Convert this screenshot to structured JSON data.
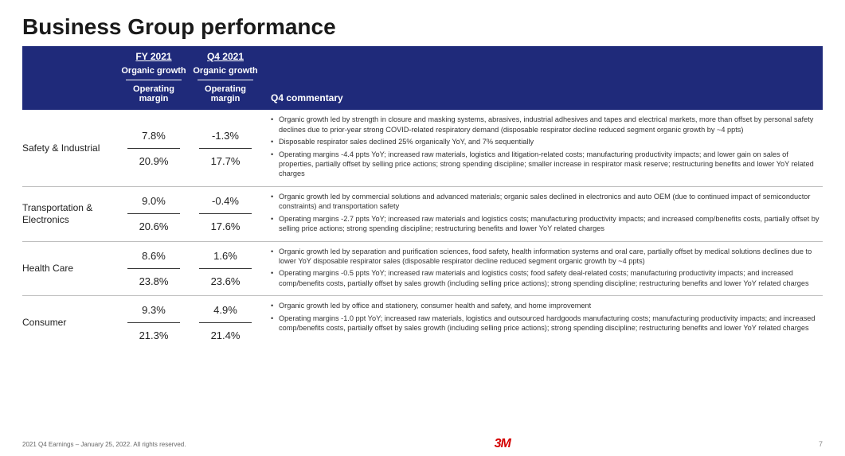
{
  "title": "Business Group performance",
  "header": {
    "period_fy": "FY 2021",
    "period_q4": "Q4 2021",
    "sub_growth": "Organic growth",
    "sub_margin": "Operating margin",
    "commentary_label": "Q4 commentary"
  },
  "segments": [
    {
      "name": "Safety & Industrial",
      "fy_growth": "7.8%",
      "fy_margin": "20.9%",
      "q4_growth": "-1.3%",
      "q4_margin": "17.7%",
      "bullets": [
        "Organic growth led by strength in closure and masking systems, abrasives, industrial adhesives and tapes and electrical markets, more than offset by personal safety declines due to prior-year strong COVID-related respiratory demand (disposable respirator decline reduced segment organic growth by ~4 ppts)",
        "Disposable respirator sales declined 25% organically YoY, and 7% sequentially",
        "Operating margins -4.4 ppts YoY; increased raw materials, logistics and litigation-related costs; manufacturing productivity impacts; and lower gain on sales of properties, partially offset by selling price actions; strong spending discipline; smaller increase in respirator mask reserve; restructuring benefits and lower YoY related charges"
      ]
    },
    {
      "name": "Transportation & Electronics",
      "fy_growth": "9.0%",
      "fy_margin": "20.6%",
      "q4_growth": "-0.4%",
      "q4_margin": "17.6%",
      "bullets": [
        "Organic growth led by commercial solutions and advanced materials; organic sales declined in electronics and auto OEM (due to continued impact of semiconductor constraints) and transportation safety",
        "Operating margins -2.7 ppts YoY; increased raw materials and logistics costs; manufacturing productivity impacts; and increased comp/benefits costs, partially offset by selling price actions; strong spending discipline; restructuring benefits and lower YoY related charges"
      ]
    },
    {
      "name": "Health Care",
      "fy_growth": "8.6%",
      "fy_margin": "23.8%",
      "q4_growth": "1.6%",
      "q4_margin": "23.6%",
      "bullets": [
        "Organic growth led by separation and purification sciences, food safety, health information systems and oral care, partially offset by medical solutions declines due to lower YoY disposable respirator sales (disposable respirator decline reduced segment organic growth by ~4 ppts)",
        "Operating margins -0.5 ppts YoY; increased raw materials and logistics costs; food safety deal-related costs; manufacturing productivity impacts; and increased comp/benefits costs, partially offset by sales growth (including selling price actions); strong spending discipline; restructuring benefits and lower YoY related charges"
      ]
    },
    {
      "name": "Consumer",
      "fy_growth": "9.3%",
      "fy_margin": "21.3%",
      "q4_growth": "4.9%",
      "q4_margin": "21.4%",
      "bullets": [
        "Organic growth led by office and stationery, consumer health and safety, and home improvement",
        "Operating margins -1.0 ppt YoY; increased raw materials, logistics and outsourced hardgoods manufacturing costs; manufacturing productivity impacts; and increased comp/benefits costs, partially offset by sales growth (including selling price actions); strong spending discipline; restructuring benefits and lower YoY related charges"
      ]
    }
  ],
  "footer": {
    "left": "2021 Q4 Earnings – January 25, 2022. All rights reserved.",
    "logo": "3M",
    "page": "7"
  },
  "colors": {
    "header_bg": "#1f2a7a",
    "logo_color": "#d40000",
    "rule": "#bfbfbf"
  }
}
